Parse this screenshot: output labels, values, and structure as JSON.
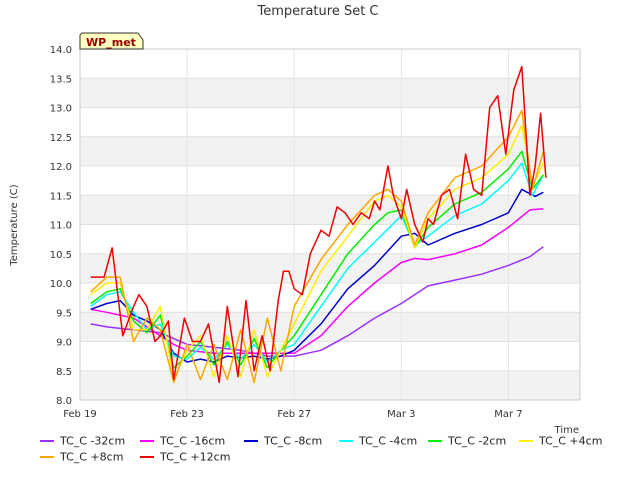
{
  "chart_data": {
    "type": "line",
    "title": "Temperature Set C",
    "xlabel": "Time",
    "ylabel": "Temperature (C)",
    "ylim": [
      8.0,
      14.0
    ],
    "yticks": [
      "8.0",
      "8.5",
      "9.0",
      "9.5",
      "10.0",
      "10.5",
      "11.0",
      "11.5",
      "12.0",
      "12.5",
      "13.0",
      "13.5",
      "14.0"
    ],
    "xlim": [
      0,
      18
    ],
    "xticks": [
      {
        "x": 0,
        "label": "Feb 19"
      },
      {
        "x": 4,
        "label": "Feb 23"
      },
      {
        "x": 8,
        "label": "Feb 27"
      },
      {
        "x": 12,
        "label": "Mar 3"
      },
      {
        "x": 16,
        "label": "Mar 7"
      }
    ],
    "grid": true,
    "legend_position": "bottom",
    "annotation": "WP_met",
    "series": [
      {
        "name": "TC_C -32cm",
        "color": "#9b30ff",
        "x": [
          0.4,
          1,
          2,
          3,
          3.5,
          4,
          5,
          6,
          7,
          8,
          8.5,
          9,
          10,
          11,
          12,
          13,
          14,
          15,
          16,
          16.8,
          17.3
        ],
        "y": [
          9.3,
          9.25,
          9.2,
          9.15,
          9.05,
          8.95,
          8.9,
          8.85,
          8.75,
          8.75,
          8.8,
          8.85,
          9.1,
          9.4,
          9.65,
          9.95,
          10.05,
          10.15,
          10.3,
          10.45,
          10.62
        ]
      },
      {
        "name": "TC_C -16cm",
        "color": "#ff00ff",
        "x": [
          0.4,
          1,
          2,
          3,
          3.5,
          4,
          5,
          6,
          7,
          8,
          9,
          10,
          11,
          12,
          12.5,
          13,
          14,
          15,
          16,
          16.8,
          17.3
        ],
        "y": [
          9.55,
          9.5,
          9.4,
          9.1,
          8.95,
          8.85,
          8.8,
          8.8,
          8.8,
          8.8,
          9.1,
          9.6,
          10.0,
          10.35,
          10.42,
          10.4,
          10.5,
          10.65,
          10.95,
          11.25,
          11.27
        ]
      },
      {
        "name": "TC_C -8cm",
        "color": "#0000cd",
        "x": [
          0.4,
          1,
          1.5,
          2,
          2.5,
          3,
          3.5,
          4,
          4.5,
          5,
          5.5,
          6,
          6.5,
          7,
          7.5,
          8,
          9,
          10,
          11,
          12,
          12.5,
          13,
          14,
          15,
          16,
          16.5,
          17,
          17.3
        ],
        "y": [
          9.55,
          9.65,
          9.7,
          9.45,
          9.35,
          9.2,
          8.8,
          8.65,
          8.7,
          8.65,
          8.75,
          8.72,
          8.75,
          8.7,
          8.75,
          8.85,
          9.3,
          9.9,
          10.3,
          10.8,
          10.85,
          10.65,
          10.85,
          11.0,
          11.2,
          11.6,
          11.48,
          11.55
        ]
      },
      {
        "name": "TC_C -4cm",
        "color": "#00ffff",
        "x": [
          0.4,
          1,
          1.5,
          2,
          2.5,
          3,
          3.5,
          4,
          4.5,
          5,
          5.5,
          6,
          6.5,
          7,
          7.5,
          8,
          9,
          10,
          11,
          12,
          12.5,
          13,
          14,
          15,
          16,
          16.5,
          16.9,
          17.3
        ],
        "y": [
          9.6,
          9.8,
          9.85,
          9.5,
          9.2,
          9.3,
          8.75,
          8.7,
          8.9,
          8.7,
          8.95,
          8.7,
          8.95,
          8.65,
          8.85,
          8.95,
          9.6,
          10.25,
          10.7,
          11.15,
          10.65,
          10.8,
          11.15,
          11.35,
          11.75,
          12.05,
          11.5,
          11.85
        ]
      },
      {
        "name": "TC_C -2cm",
        "color": "#00ee00",
        "x": [
          0.4,
          1,
          1.5,
          2,
          2.5,
          3,
          3.5,
          4,
          4.5,
          5,
          5.5,
          6,
          6.5,
          7,
          7.5,
          8,
          9,
          10,
          11,
          11.5,
          12,
          12.5,
          13,
          14,
          15,
          16,
          16.5,
          16.9,
          17.3
        ],
        "y": [
          9.65,
          9.85,
          9.9,
          9.35,
          9.15,
          9.45,
          8.55,
          8.75,
          9.0,
          8.6,
          9.0,
          8.6,
          9.05,
          8.55,
          8.85,
          9.1,
          9.8,
          10.5,
          11.0,
          11.2,
          11.25,
          10.6,
          10.95,
          11.35,
          11.55,
          11.95,
          12.25,
          11.6,
          11.85
        ]
      },
      {
        "name": "TC_C +4cm",
        "color": "#ffee00",
        "x": [
          0.4,
          1,
          1.5,
          2,
          2.5,
          3,
          3.5,
          4,
          4.5,
          5,
          5.5,
          6,
          6.5,
          7,
          7.5,
          8,
          9,
          10,
          11,
          11.5,
          12,
          12.5,
          13,
          14,
          15,
          16,
          16.5,
          16.9,
          17.3
        ],
        "y": [
          9.8,
          10.0,
          10.0,
          9.2,
          9.2,
          9.6,
          8.35,
          8.85,
          9.1,
          8.4,
          9.1,
          8.4,
          9.2,
          8.4,
          8.85,
          9.3,
          10.2,
          10.8,
          11.4,
          11.5,
          11.3,
          10.6,
          11.1,
          11.6,
          11.8,
          12.2,
          12.7,
          11.65,
          12.05
        ]
      },
      {
        "name": "TC_C +8cm",
        "color": "#ffa500",
        "x": [
          0.4,
          1,
          1.5,
          2,
          2.5,
          3,
          3.5,
          4,
          4.5,
          5,
          5.5,
          6,
          6.5,
          7,
          7.5,
          8,
          8.5,
          9,
          10,
          11,
          11.5,
          12,
          12.5,
          13,
          14,
          15,
          16,
          16.5,
          16.9,
          17.3
        ],
        "y": [
          9.85,
          10.1,
          10.1,
          9.0,
          9.4,
          9.2,
          8.3,
          8.95,
          8.35,
          8.95,
          8.35,
          9.2,
          8.3,
          9.4,
          8.5,
          9.6,
          10.0,
          10.4,
          11.0,
          11.5,
          11.6,
          11.4,
          10.65,
          11.2,
          11.8,
          12.0,
          12.5,
          12.95,
          11.6,
          12.25
        ]
      },
      {
        "name": "TC_C +12cm",
        "color": "#ee0000",
        "x": [
          0.4,
          0.9,
          1.2,
          1.6,
          2,
          2.2,
          2.5,
          2.8,
          3,
          3.3,
          3.5,
          3.9,
          4.2,
          4.5,
          4.8,
          5.2,
          5.5,
          5.9,
          6.2,
          6.5,
          6.8,
          7.1,
          7.4,
          7.6,
          7.8,
          8,
          8.3,
          8.6,
          9,
          9.3,
          9.6,
          9.9,
          10.2,
          10.5,
          10.8,
          11,
          11.2,
          11.5,
          11.7,
          12,
          12.2,
          12.5,
          12.8,
          13,
          13.2,
          13.5,
          13.8,
          14.1,
          14.4,
          14.7,
          15,
          15.3,
          15.6,
          15.9,
          16.2,
          16.5,
          16.8,
          17,
          17.2,
          17.4
        ],
        "y": [
          10.1,
          10.1,
          10.6,
          9.1,
          9.6,
          9.8,
          9.6,
          9.0,
          9.1,
          9.35,
          8.35,
          9.4,
          9.0,
          9.0,
          9.3,
          8.3,
          9.6,
          8.4,
          9.7,
          8.5,
          9.1,
          8.5,
          9.7,
          10.2,
          10.2,
          9.9,
          9.8,
          10.5,
          10.9,
          10.8,
          11.3,
          11.2,
          11.0,
          11.2,
          11.1,
          11.4,
          11.25,
          12.0,
          11.5,
          11.1,
          11.6,
          11.0,
          10.7,
          11.1,
          11.0,
          11.5,
          11.6,
          11.1,
          12.2,
          11.6,
          11.5,
          13.0,
          13.2,
          12.2,
          13.3,
          13.7,
          11.5,
          12.0,
          12.9,
          11.8
        ]
      }
    ]
  }
}
